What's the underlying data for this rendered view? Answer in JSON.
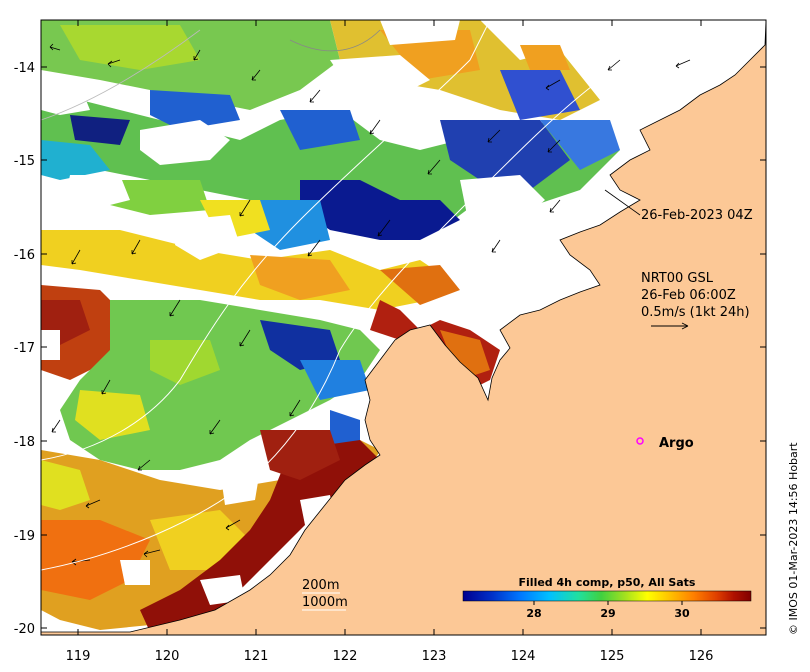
{
  "map": {
    "x_ticks": [
      "119",
      "120",
      "121",
      "122",
      "123",
      "124",
      "125",
      "126"
    ],
    "y_ticks": [
      "-14",
      "-15",
      "-16",
      "-17",
      "-18",
      "-19",
      "-20"
    ],
    "lon_range": [
      118.65,
      126.75
    ],
    "lat_range": [
      -13.55,
      -20.1
    ],
    "land_color": "#fcc896",
    "frame_color": "#000000"
  },
  "annotations": {
    "time_label": "26-Feb-2023 04Z",
    "current_title": "NRT00 GSL",
    "current_time": "26-Feb 06:00Z",
    "current_scale": "0.5m/s (1kt 24h)",
    "argo_label": "Argo",
    "argo_color": "#ff00ff",
    "isobath_200": "200m",
    "isobath_1000": "1000m",
    "credit": "© IMOS 01-Mar-2023 14:56 Hobart"
  },
  "colorbar": {
    "title": "Filled 4h comp, p50, All Sats",
    "ticks": [
      "28",
      "29",
      "30"
    ],
    "colors": [
      "#00008f",
      "#0030c8",
      "#0078ff",
      "#00c0ff",
      "#20e0a0",
      "#40d040",
      "#a0e020",
      "#ffff00",
      "#ffc000",
      "#ff8000",
      "#e04000",
      "#b01000",
      "#800000"
    ]
  }
}
